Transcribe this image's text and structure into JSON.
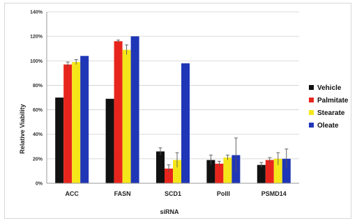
{
  "chart_data": {
    "type": "bar",
    "title": "",
    "xlabel": "siRNA",
    "ylabel": "Relative Viability",
    "ylim": [
      0,
      140
    ],
    "yticks": [
      0,
      20,
      40,
      60,
      80,
      100,
      120,
      140
    ],
    "ytick_labels": [
      "0%",
      "20%",
      "40%",
      "60%",
      "80%",
      "100%",
      "120%",
      "140%"
    ],
    "grid": true,
    "legend_position": "right",
    "categories": [
      "ACC",
      "FASN",
      "SCD1",
      "PolII",
      "PSMD14"
    ],
    "series": [
      {
        "name": "Vehicle",
        "color": "#111111",
        "values": [
          70,
          69,
          26,
          19,
          15
        ],
        "errors": [
          0,
          0,
          3,
          4,
          2
        ]
      },
      {
        "name": "Palmitate",
        "color": "#e8251c",
        "values": [
          97,
          116,
          12,
          16,
          19
        ],
        "errors": [
          2,
          1,
          3,
          2,
          2
        ]
      },
      {
        "name": "Stearate",
        "color": "#f5e61a",
        "values": [
          99,
          109,
          19,
          21,
          20
        ],
        "errors": [
          2,
          4,
          6,
          2,
          5
        ]
      },
      {
        "name": "Oleate",
        "color": "#1f37b7",
        "values": [
          104,
          120,
          98,
          23,
          20
        ],
        "errors": [
          0,
          0,
          0,
          14,
          8
        ]
      }
    ]
  }
}
